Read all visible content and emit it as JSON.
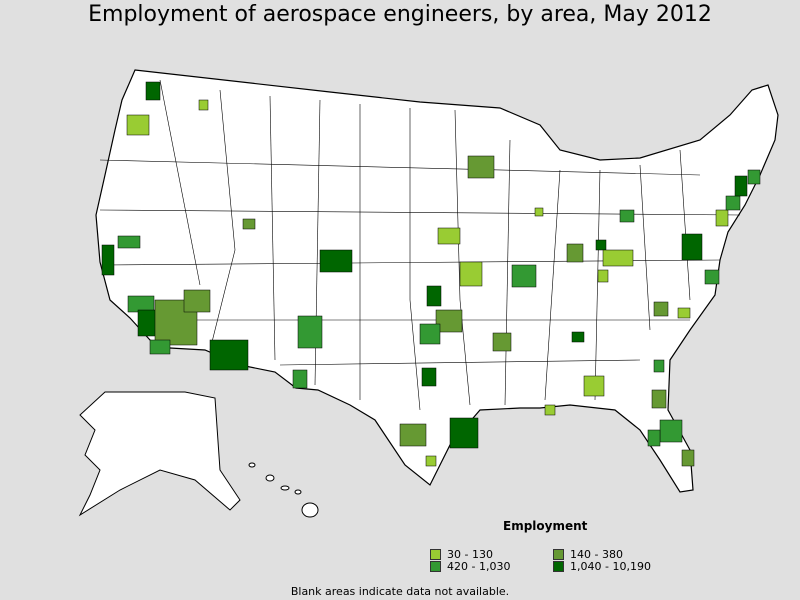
{
  "title": "Employment of aerospace engineers, by area, May 2012",
  "legend": {
    "title": "Employment",
    "items": [
      {
        "label": "30 - 130",
        "color": "#99cc33"
      },
      {
        "label": "140 - 380",
        "color": "#669933"
      },
      {
        "label": "420 - 1,030",
        "color": "#339933"
      },
      {
        "label": "1,040 - 10,190",
        "color": "#006600"
      }
    ]
  },
  "footnote": "Blank areas indicate data not available.",
  "colors": {
    "background": "#e0e0e0",
    "land": "#ffffff",
    "boundary": "#000000"
  }
}
